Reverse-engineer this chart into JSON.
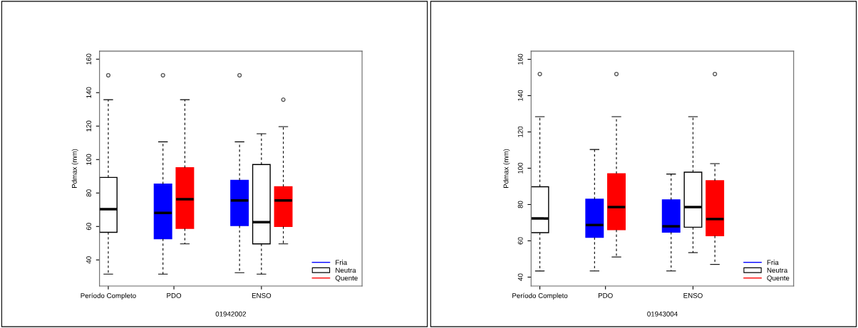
{
  "chart_data": [
    {
      "type": "box",
      "xlabel": "01942002",
      "ylabel": "Pdmax (mm)",
      "categories": [
        "Período Completo",
        "PDO",
        "ENSO"
      ],
      "ylim": [
        24.4,
        164.8
      ],
      "yticks": [
        40,
        60,
        80,
        100,
        120,
        140,
        160
      ],
      "grid": false,
      "legend": "bottom right",
      "series": [
        {
          "name": "Fria",
          "color": "#0000ff",
          "boxes": [
            null,
            {
              "low": 31.5,
              "q1": 52.7,
              "median": 68.1,
              "q3": 85.3,
              "high": 110.6,
              "outliers": [
                150.4
              ]
            },
            {
              "low": 32.4,
              "q1": 60.5,
              "median": 75.5,
              "q3": 87.6,
              "high": 110.6,
              "outliers": [
                150.4
              ]
            }
          ]
        },
        {
          "name": "Neutra",
          "color": "#ffffff",
          "boxes": [
            {
              "low": 31.5,
              "q1": 56.5,
              "median": 70.3,
              "q3": 89.3,
              "high": 135.8,
              "outliers": [
                150.4
              ]
            },
            null,
            {
              "low": 31.5,
              "q1": 49.6,
              "median": 62.6,
              "q3": 97.0,
              "high": 115.4
            }
          ]
        },
        {
          "name": "Quente",
          "color": "#ff0000",
          "boxes": [
            null,
            {
              "low": 49.6,
              "q1": 58.8,
              "median": 76.3,
              "q3": 95.1,
              "high": 135.8
            },
            {
              "low": 49.6,
              "q1": 60.0,
              "median": 75.5,
              "q3": 83.8,
              "high": 119.7,
              "outliers": [
                135.8
              ]
            }
          ]
        }
      ]
    },
    {
      "type": "box",
      "xlabel": "01943004",
      "ylabel": "Pdmax (mm)",
      "categories": [
        "Período Completo",
        "PDO",
        "ENSO"
      ],
      "ylim": [
        35.1,
        164.5
      ],
      "yticks": [
        40,
        60,
        80,
        100,
        120,
        140,
        160
      ],
      "grid": false,
      "legend": "bottom right",
      "series": [
        {
          "name": "Fria",
          "color": "#0000ff",
          "boxes": [
            null,
            {
              "low": 43.4,
              "q1": 61.9,
              "median": 68.7,
              "q3": 82.9,
              "high": 110.3
            },
            {
              "low": 43.4,
              "q1": 64.8,
              "median": 68.0,
              "q3": 82.6,
              "high": 96.8
            }
          ]
        },
        {
          "name": "Neutra",
          "color": "#ffffff",
          "boxes": [
            {
              "low": 43.4,
              "q1": 64.5,
              "median": 72.3,
              "q3": 89.8,
              "high": 128.4,
              "outliers": [
                151.9
              ]
            },
            null,
            {
              "low": 53.5,
              "q1": 67.5,
              "median": 78.6,
              "q3": 97.8,
              "high": 128.4
            }
          ]
        },
        {
          "name": "Quente",
          "color": "#ff0000",
          "boxes": [
            null,
            {
              "low": 51.1,
              "q1": 66.1,
              "median": 78.6,
              "q3": 97.0,
              "high": 128.4,
              "outliers": [
                151.9
              ]
            },
            {
              "low": 47.0,
              "q1": 62.8,
              "median": 72.0,
              "q3": 93.1,
              "high": 102.5,
              "outliers": [
                151.9
              ]
            }
          ]
        }
      ]
    }
  ]
}
